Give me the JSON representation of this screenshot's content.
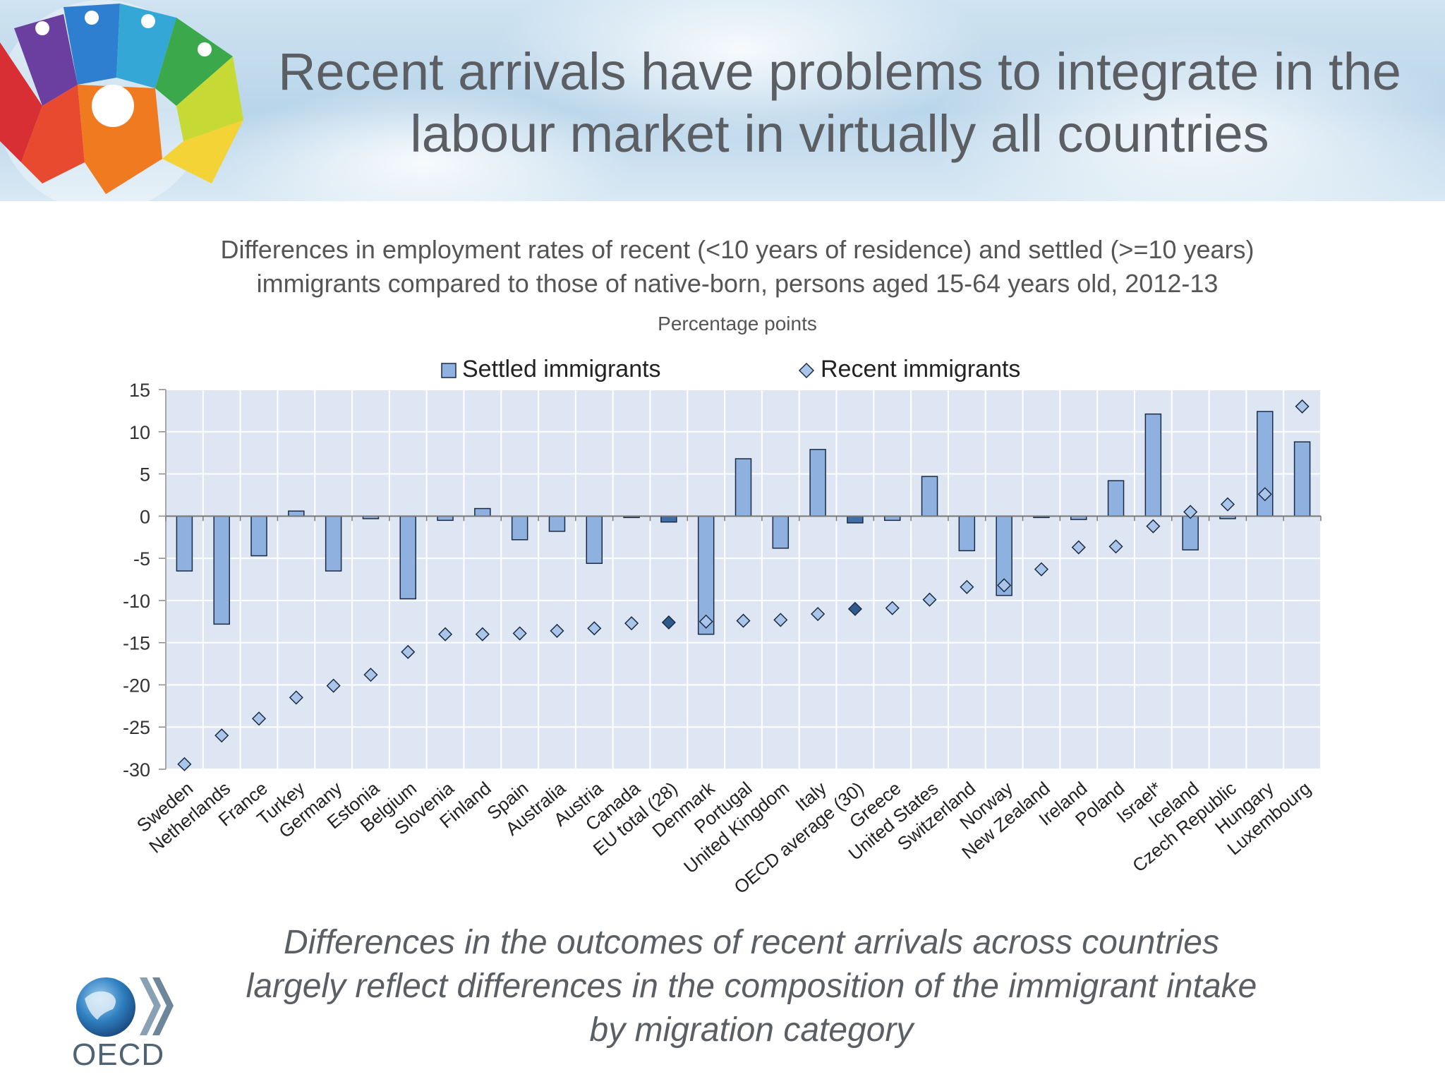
{
  "slide": {
    "title_line1": "Recent arrivals have problems to integrate in the",
    "title_line2": "labour market in virtually all countries",
    "subtitle_line1": "Differences in employment rates of recent (<10 years of residence) and settled (>=10 years)",
    "subtitle_line2": "immigrants compared to those of native-born, persons aged 15-64 years old, 2012-13",
    "unit": "Percentage points",
    "footer_line1": "Differences in the outcomes of recent arrivals across countries",
    "footer_line2": "largely reflect differences in the composition of the immigrant intake",
    "footer_line3": "by migration category",
    "logo_text": "OECD"
  },
  "colors": {
    "bar_fill": "#8fb1e0",
    "bar_highlight": "#3f6ea8",
    "diamond_fill": "#a9c6ea",
    "diamond_highlight": "#2f5a8e",
    "plot_bg": "#dfe6f3",
    "grid": "#ffffff"
  },
  "chart_data": {
    "type": "bar",
    "ylim": [
      -30,
      15
    ],
    "yticks": [
      15,
      10,
      5,
      0,
      -5,
      -10,
      -15,
      -20,
      -25,
      -30
    ],
    "legend": {
      "position": "top",
      "settled": "Settled immigrants",
      "recent": "Recent immigrants"
    },
    "highlighted": [
      "EU total (28)",
      "OECD average (30)"
    ],
    "categories": [
      "Sweden",
      "Netherlands",
      "France",
      "Turkey",
      "Germany",
      "Estonia",
      "Belgium",
      "Slovenia",
      "Finland",
      "Spain",
      "Australia",
      "Austria",
      "Canada",
      "EU total (28)",
      "Denmark",
      "Portugal",
      "United Kingdom",
      "Italy",
      "OECD average (30)",
      "Greece",
      "United States",
      "Switzerland",
      "Norway",
      "New Zealand",
      "Ireland",
      "Poland",
      "Israel*",
      "Iceland",
      "Czech Republic",
      "Hungary",
      "Luxembourg"
    ],
    "series": [
      {
        "name": "Settled immigrants",
        "marker": "bar",
        "values": [
          -6.5,
          -12.8,
          -4.7,
          0.6,
          -6.5,
          -0.3,
          -9.8,
          -0.5,
          0.9,
          -2.8,
          -1.8,
          -5.6,
          -0.1,
          -0.7,
          -14.0,
          6.8,
          -3.8,
          7.9,
          -0.8,
          -0.5,
          4.7,
          -4.1,
          -9.4,
          -0.1,
          -0.4,
          4.2,
          12.1,
          -4.0,
          -0.3,
          12.4,
          8.8
        ]
      },
      {
        "name": "Recent immigrants",
        "marker": "diamond",
        "values": [
          -29.4,
          -26.0,
          -24.0,
          -21.5,
          -20.1,
          -18.8,
          -16.1,
          -14.0,
          -14.0,
          -13.9,
          -13.6,
          -13.3,
          -12.7,
          -12.6,
          -12.5,
          -12.4,
          -12.3,
          -11.6,
          -11.0,
          -10.9,
          -9.9,
          -8.4,
          -8.2,
          -6.3,
          -3.7,
          -3.6,
          -1.2,
          0.5,
          1.4,
          2.6,
          13.0
        ]
      }
    ]
  }
}
